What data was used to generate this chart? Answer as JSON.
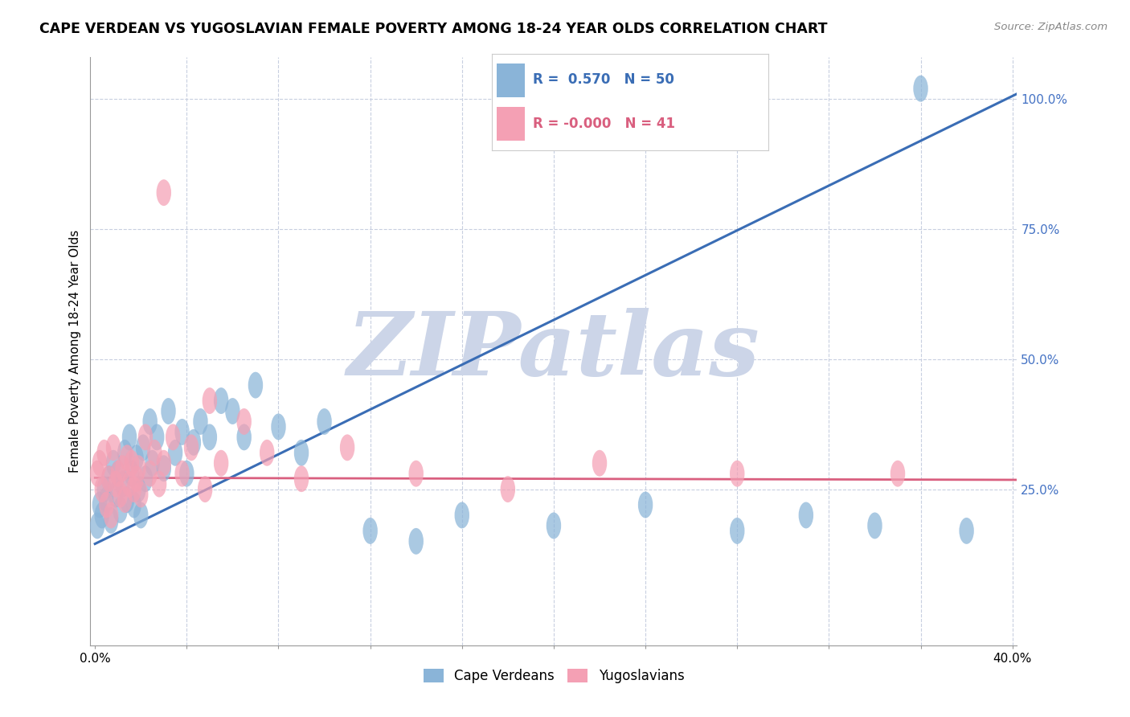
{
  "title": "CAPE VERDEAN VS YUGOSLAVIAN FEMALE POVERTY AMONG 18-24 YEAR OLDS CORRELATION CHART",
  "source": "Source: ZipAtlas.com",
  "ylabel": "Female Poverty Among 18-24 Year Olds",
  "xlim": [
    -0.002,
    0.402
  ],
  "ylim": [
    -0.05,
    1.08
  ],
  "blue_R": 0.57,
  "blue_N": 50,
  "pink_R": -0.0,
  "pink_N": 41,
  "blue_color": "#8ab4d8",
  "pink_color": "#f4a0b4",
  "blue_line_color": "#3a6db5",
  "pink_line_color": "#d95f7f",
  "grid_color": "#c8cfe0",
  "watermark": "ZIPatlas",
  "watermark_color": "#ccd5e8",
  "blue_line_x0": 0.0,
  "blue_line_y0": 0.145,
  "blue_line_x1": 0.402,
  "blue_line_y1": 1.01,
  "pink_line_x0": 0.0,
  "pink_line_y0": 0.272,
  "pink_line_x1": 0.402,
  "pink_line_y1": 0.268,
  "blue_x": [
    0.001,
    0.002,
    0.003,
    0.004,
    0.005,
    0.006,
    0.007,
    0.008,
    0.009,
    0.01,
    0.011,
    0.012,
    0.013,
    0.014,
    0.015,
    0.016,
    0.017,
    0.018,
    0.019,
    0.02,
    0.021,
    0.022,
    0.024,
    0.025,
    0.027,
    0.03,
    0.032,
    0.035,
    0.038,
    0.04,
    0.043,
    0.046,
    0.05,
    0.055,
    0.06,
    0.065,
    0.07,
    0.08,
    0.09,
    0.1,
    0.12,
    0.14,
    0.16,
    0.2,
    0.24,
    0.28,
    0.31,
    0.34,
    0.36,
    0.38
  ],
  "blue_y": [
    0.18,
    0.22,
    0.2,
    0.25,
    0.23,
    0.27,
    0.19,
    0.3,
    0.24,
    0.28,
    0.21,
    0.26,
    0.32,
    0.23,
    0.35,
    0.28,
    0.22,
    0.31,
    0.25,
    0.2,
    0.33,
    0.27,
    0.38,
    0.3,
    0.35,
    0.29,
    0.4,
    0.32,
    0.36,
    0.28,
    0.34,
    0.38,
    0.35,
    0.42,
    0.4,
    0.35,
    0.45,
    0.37,
    0.32,
    0.38,
    0.17,
    0.15,
    0.2,
    0.18,
    0.22,
    0.17,
    0.2,
    0.18,
    1.02,
    0.17
  ],
  "pink_x": [
    0.001,
    0.002,
    0.003,
    0.004,
    0.005,
    0.006,
    0.007,
    0.008,
    0.009,
    0.01,
    0.011,
    0.012,
    0.013,
    0.014,
    0.015,
    0.016,
    0.017,
    0.018,
    0.019,
    0.02,
    0.022,
    0.024,
    0.026,
    0.028,
    0.03,
    0.034,
    0.038,
    0.042,
    0.048,
    0.055,
    0.065,
    0.075,
    0.09,
    0.11,
    0.14,
    0.18,
    0.22,
    0.28,
    0.03,
    0.05,
    0.35
  ],
  "pink_y": [
    0.28,
    0.3,
    0.25,
    0.32,
    0.22,
    0.27,
    0.2,
    0.33,
    0.26,
    0.28,
    0.24,
    0.29,
    0.23,
    0.31,
    0.26,
    0.3,
    0.25,
    0.27,
    0.29,
    0.24,
    0.35,
    0.28,
    0.32,
    0.26,
    0.3,
    0.35,
    0.28,
    0.33,
    0.25,
    0.3,
    0.38,
    0.32,
    0.27,
    0.33,
    0.28,
    0.25,
    0.3,
    0.28,
    0.82,
    0.42,
    0.28
  ]
}
